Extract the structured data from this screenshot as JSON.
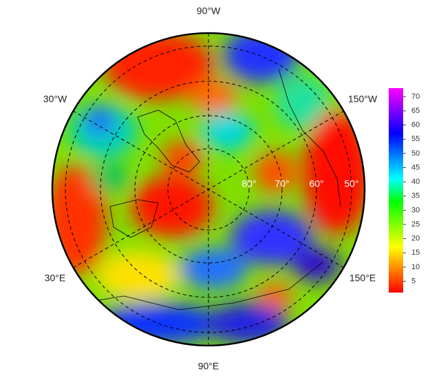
{
  "map": {
    "lon_labels": [
      "90°W",
      "30°W",
      "150°W",
      "30°E",
      "150°E",
      "90°E"
    ],
    "lat_labels": [
      "80°",
      "70°",
      "60°",
      "50°"
    ],
    "colorbar": {
      "range": [
        1,
        73
      ],
      "ticks": [
        5,
        10,
        15,
        20,
        25,
        30,
        35,
        40,
        45,
        50,
        55,
        60,
        65,
        70
      ],
      "colormap": [
        "#ff0000",
        "#ff8000",
        "#ffff00",
        "#80ff00",
        "#00ff00",
        "#00ffff",
        "#0080ff",
        "#0000ff",
        "#8000ff",
        "#ff00ff"
      ]
    }
  }
}
